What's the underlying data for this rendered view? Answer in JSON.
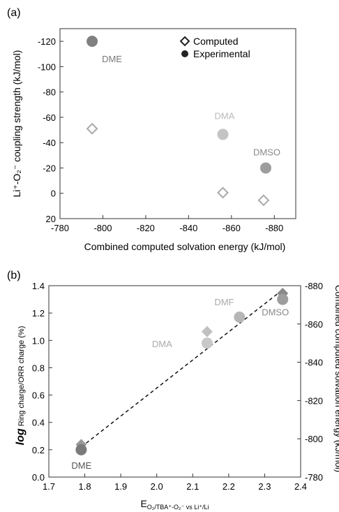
{
  "chart_data": [
    {
      "panel_label": "(a)",
      "type": "scatter",
      "xlabel": "Combined computed solvation energy (kJ/mol)",
      "ylabel": "Li⁺-O₂⁻ coupling strength (kJ/mol)",
      "xlim": [
        -780,
        -890
      ],
      "ylim": [
        20,
        -130
      ],
      "xticks": [
        "-780",
        "-800",
        "-820",
        "-840",
        "-860",
        "-880"
      ],
      "yticks": [
        "-120",
        "-100",
        "-80",
        "-60",
        "-40",
        "-20",
        "0",
        "20"
      ],
      "legend": {
        "position": "top-right",
        "entries": [
          {
            "label": "Computed",
            "marker": "open-diamond"
          },
          {
            "label": "Experimental",
            "marker": "filled-circle"
          }
        ]
      },
      "series": [
        {
          "name": "Computed",
          "marker": "open-diamond",
          "points": [
            {
              "x": -795,
              "y": -51
            },
            {
              "x": -856,
              "y": -0.5
            },
            {
              "x": -875,
              "y": 5.5
            }
          ]
        },
        {
          "name": "Experimental",
          "marker": "filled-circle",
          "points": [
            {
              "x": -795,
              "y": -120,
              "label": "DME",
              "color": "#808080"
            },
            {
              "x": -856,
              "y": -46.5,
              "label": "DMA",
              "color": "#c4c4c4"
            },
            {
              "x": -876,
              "y": -20,
              "label": "DMSO",
              "color": "#9d9d9d"
            }
          ]
        }
      ]
    },
    {
      "panel_label": "(b)",
      "type": "scatter",
      "xlabel_main": "E",
      "xlabel_sub": "O₂/TBA⁺-O₂⁻ vs Li⁺/Li",
      "ylabel_italic": "log",
      "ylabel_rest": " Ring charge/ORR charge (%)",
      "y2label": "Combined computed solvation energy (kJ/mol)",
      "xlim": [
        1.7,
        2.4
      ],
      "ylim": [
        0.0,
        1.4
      ],
      "y2lim": [
        -780,
        -880
      ],
      "xticks": [
        "1.7",
        "1.8",
        "1.9",
        "2.0",
        "2.1",
        "2.2",
        "2.3",
        "2.4"
      ],
      "yticks": [
        "0.0",
        "0.2",
        "0.4",
        "0.6",
        "0.8",
        "1.0",
        "1.2",
        "1.4"
      ],
      "y2ticks": [
        "-780",
        "-800",
        "-820",
        "-840",
        "-860",
        "-880"
      ],
      "series": [
        {
          "name": "Experimental",
          "marker": "filled-circle",
          "points": [
            {
              "x": 1.79,
              "y": 0.2,
              "label": "DME",
              "color": "#7a7a7a"
            },
            {
              "x": 2.14,
              "y": 0.98,
              "label": "DMA",
              "color": "#c8c8c8"
            },
            {
              "x": 2.23,
              "y": 1.17,
              "label": "DMF",
              "color": "#b6b6b6"
            },
            {
              "x": 2.35,
              "y": 1.3,
              "label": "DMSO",
              "color": "#9d9d9d"
            }
          ]
        },
        {
          "name": "Computed",
          "marker": "filled-diamond",
          "axis": "right",
          "points": [
            {
              "x": 1.79,
              "y2": -797,
              "color": "#9a9a9a"
            },
            {
              "x": 2.14,
              "y2": -856,
              "color": "#c0c0c0"
            },
            {
              "x": 2.35,
              "y2": -876,
              "color": "#8a8a8a"
            }
          ]
        }
      ],
      "fit_line": {
        "style": "dashed",
        "from": {
          "x": 1.79,
          "y": 0.22
        },
        "to": {
          "x": 2.35,
          "y": 1.37
        }
      }
    }
  ]
}
